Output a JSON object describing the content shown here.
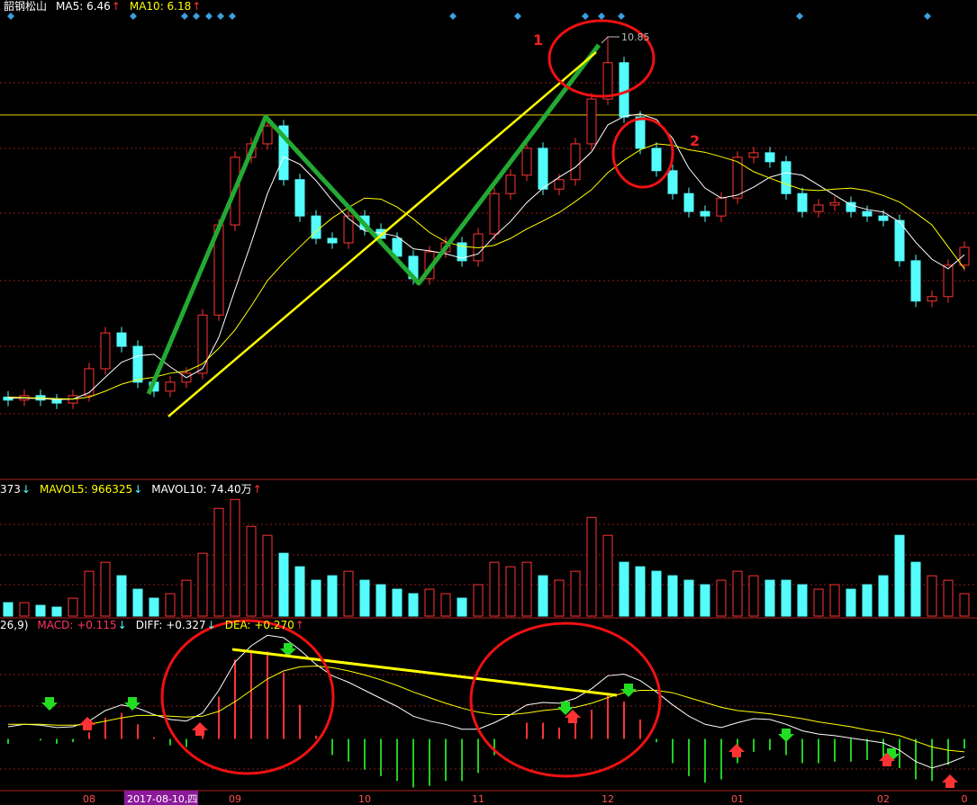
{
  "chart_data": [
    {
      "type": "candlestick",
      "title": "韶钢松山",
      "legend": [
        {
          "text": "MA5: 6.46",
          "arrow": "↑",
          "color": "#ffffff",
          "arrow_color": "#ff3333"
        },
        {
          "text": "MA10: 6.18",
          "arrow": "↑",
          "color": "#ffff00",
          "arrow_color": "#ff3333"
        }
      ],
      "categories": [
        null,
        null,
        null,
        null,
        null,
        "08",
        null,
        null,
        null,
        null,
        null,
        null,
        null,
        null,
        "09",
        null,
        null,
        null,
        null,
        null,
        null,
        null,
        "10",
        null,
        null,
        null,
        null,
        null,
        null,
        "11",
        null,
        null,
        null,
        null,
        null,
        null,
        null,
        "12",
        null,
        null,
        null,
        null,
        null,
        null,
        null,
        "01",
        null,
        null,
        null,
        null,
        null,
        null,
        null,
        null,
        "02",
        null,
        null,
        null,
        null,
        "0"
      ],
      "cursor_date": "2017-08-10,四",
      "open": [
        3.6,
        3.54,
        3.63,
        3.54,
        3.48,
        3.63,
        4.17,
        4.89,
        4.62,
        3.9,
        3.72,
        3.9,
        4.08,
        5.25,
        7.06,
        8.42,
        8.69,
        9.05,
        7.97,
        7.24,
        6.79,
        6.7,
        7.24,
        6.97,
        6.79,
        6.43,
        5.98,
        6.52,
        6.7,
        6.34,
        6.88,
        7.69,
        8.06,
        8.6,
        7.78,
        7.97,
        8.69,
        9.59,
        10.32,
        9.23,
        8.6,
        8.15,
        7.69,
        7.33,
        7.24,
        7.6,
        8.42,
        8.51,
        8.33,
        7.69,
        7.33,
        7.46,
        7.51,
        7.33,
        7.24,
        7.15,
        6.34,
        5.53,
        5.62,
        6.25
      ],
      "high": [
        3.72,
        3.75,
        3.75,
        3.66,
        3.75,
        4.29,
        5.01,
        5.01,
        4.74,
        4.02,
        4.02,
        4.2,
        5.37,
        7.18,
        8.54,
        8.81,
        9.17,
        9.17,
        8.09,
        7.36,
        6.91,
        7.36,
        7.36,
        7.09,
        6.91,
        6.55,
        6.64,
        6.82,
        6.82,
        7.0,
        7.81,
        8.18,
        8.72,
        8.72,
        8.09,
        8.81,
        9.71,
        10.85,
        10.44,
        9.35,
        8.72,
        8.27,
        7.81,
        7.45,
        7.72,
        8.54,
        8.63,
        8.63,
        8.45,
        7.81,
        7.58,
        7.63,
        7.63,
        7.45,
        7.36,
        7.27,
        6.46,
        5.74,
        6.37,
        6.73
      ],
      "low": [
        3.42,
        3.42,
        3.42,
        3.36,
        3.36,
        3.51,
        4.05,
        4.5,
        3.78,
        3.6,
        3.6,
        3.78,
        3.96,
        5.13,
        6.94,
        8.3,
        8.57,
        7.85,
        7.12,
        6.67,
        6.58,
        6.58,
        6.85,
        6.67,
        6.31,
        5.86,
        5.86,
        6.4,
        6.22,
        6.22,
        6.76,
        7.57,
        7.94,
        7.66,
        7.66,
        7.85,
        8.57,
        9.47,
        9.11,
        8.48,
        8.03,
        7.57,
        7.21,
        7.12,
        7.12,
        7.48,
        8.3,
        8.21,
        7.57,
        7.21,
        7.21,
        7.34,
        7.21,
        7.12,
        7.03,
        6.22,
        5.41,
        5.41,
        5.5,
        6.13
      ],
      "close": [
        3.54,
        3.63,
        3.54,
        3.48,
        3.63,
        4.17,
        4.89,
        4.62,
        3.9,
        3.72,
        3.9,
        4.08,
        5.25,
        7.06,
        8.42,
        8.69,
        9.05,
        7.97,
        7.24,
        6.79,
        6.7,
        7.24,
        6.97,
        6.79,
        6.43,
        5.98,
        6.52,
        6.7,
        6.34,
        6.88,
        7.69,
        8.06,
        8.6,
        7.78,
        7.97,
        8.69,
        9.59,
        10.32,
        9.23,
        8.6,
        8.15,
        7.69,
        7.33,
        7.24,
        7.6,
        8.42,
        8.51,
        8.33,
        7.69,
        7.33,
        7.46,
        7.51,
        7.33,
        7.24,
        7.15,
        6.34,
        5.53,
        5.62,
        6.25,
        6.61
      ],
      "series": [
        {
          "color": "#ffffff",
          "values": [
            3.58,
            3.58,
            3.57,
            3.55,
            3.56,
            3.69,
            4.0,
            4.3,
            4.43,
            4.46,
            4.21,
            3.99,
            4.17,
            4.8,
            5.76,
            6.7,
            7.69,
            8.43,
            8.28,
            7.95,
            7.55,
            7.19,
            6.94,
            6.9,
            6.83,
            6.58,
            6.54,
            6.48,
            6.39,
            6.48,
            6.83,
            7.13,
            7.51,
            7.8,
            8.02,
            8.22,
            8.53,
            9.07,
            9.24,
            9.29,
            9.18,
            8.8,
            8.2,
            7.8,
            7.6,
            7.66,
            7.82,
            8.02,
            8.11,
            8.06,
            7.86,
            7.66,
            7.46,
            7.37,
            7.32,
            7.12,
            6.71,
            6.37,
            6.18,
            6.46
          ]
        },
        {
          "color": "#ffff00",
          "values": [
            3.6,
            3.59,
            3.58,
            3.57,
            3.56,
            3.6,
            3.72,
            3.86,
            3.95,
            4.0,
            4.08,
            4.12,
            4.27,
            4.58,
            4.95,
            5.43,
            5.94,
            6.3,
            6.62,
            6.93,
            7.2,
            7.41,
            7.6,
            7.58,
            7.42,
            7.18,
            6.91,
            6.72,
            6.63,
            6.6,
            6.65,
            6.79,
            6.98,
            7.14,
            7.31,
            7.53,
            7.77,
            8.11,
            8.36,
            8.57,
            8.69,
            8.66,
            8.57,
            8.52,
            8.43,
            8.33,
            8.13,
            8.0,
            7.88,
            7.77,
            7.75,
            7.78,
            7.8,
            7.75,
            7.65,
            7.52,
            7.3,
            7.06,
            6.62,
            6.18
          ]
        }
      ],
      "ylim": [
        2,
        11.4
      ],
      "reference_line": 9.27,
      "up_color": "#ff3333",
      "down_color": "#54fcfc",
      "annotations": [
        "1",
        "2"
      ]
    },
    {
      "type": "bar",
      "legend": [
        {
          "text": "373",
          "arrow": "↓",
          "color": "#ffffff",
          "arrow_color": "#54fcfc"
        },
        {
          "text": "MAVOL5: 966325",
          "arrow": "↓",
          "color": "#ffff00",
          "arrow_color": "#54fcfc"
        },
        {
          "text": "MAVOL10: 74.40万",
          "arrow": "↑",
          "color": "#ffffff",
          "arrow_color": "#ff3333"
        }
      ],
      "values": [
        510000,
        510000,
        408000,
        340000,
        680000,
        1700000,
        2040000,
        1530000,
        1020000,
        680000,
        850000,
        1360000,
        2380000,
        4080000,
        4420000,
        3400000,
        3060000,
        2380000,
        1870000,
        1360000,
        1530000,
        1700000,
        1360000,
        1190000,
        1020000,
        850000,
        1020000,
        850000,
        680000,
        1190000,
        2040000,
        1870000,
        2040000,
        1530000,
        1360000,
        1700000,
        3740000,
        3060000,
        2040000,
        1870000,
        1700000,
        1530000,
        1360000,
        1190000,
        1360000,
        1700000,
        1530000,
        1360000,
        1360000,
        1190000,
        1020000,
        1190000,
        1020000,
        1190000,
        1530000,
        3060000,
        2040000,
        1530000,
        1360000,
        850000
      ],
      "ylim": [
        0,
        4600000
      ]
    },
    {
      "type": "macd",
      "legend": [
        {
          "text": "26,9)",
          "color": "#ffffff"
        },
        {
          "text": "MACD: +0.115",
          "arrow": "↓",
          "color": "#ff3366",
          "arrow_color": "#54fcfc"
        },
        {
          "text": "DIFF: +0.327",
          "arrow": "↓",
          "color": "#ffffff",
          "arrow_color": "#54fcfc"
        },
        {
          "text": "DEA: +0.270",
          "arrow": "↑",
          "color": "#ffff00",
          "arrow_color": "#ff3333"
        }
      ],
      "values": [
        -0.06,
        0,
        -0.02,
        -0.06,
        -0.04,
        0.08,
        0.26,
        0.32,
        0.18,
        0.02,
        -0.08,
        -0.1,
        0.08,
        0.52,
        0.98,
        1.1,
        1.08,
        0.82,
        0.42,
        0.04,
        -0.2,
        -0.28,
        -0.38,
        -0.46,
        -0.52,
        -0.6,
        -0.58,
        -0.52,
        -0.52,
        -0.42,
        -0.2,
        0,
        0.2,
        0.2,
        0.14,
        0.22,
        0.36,
        0.54,
        0.46,
        0.24,
        -0.04,
        -0.3,
        -0.46,
        -0.54,
        -0.5,
        -0.3,
        -0.16,
        -0.14,
        -0.2,
        -0.3,
        -0.3,
        -0.28,
        -0.28,
        -0.26,
        -0.26,
        -0.36,
        -0.5,
        -0.52,
        -0.32,
        -0.12
      ],
      "series": [
        {
          "color": "#ffffff",
          "values": [
            0.15,
            0.18,
            0.17,
            0.14,
            0.15,
            0.22,
            0.35,
            0.42,
            0.38,
            0.3,
            0.24,
            0.22,
            0.32,
            0.6,
            0.95,
            1.15,
            1.28,
            1.25,
            1.1,
            0.92,
            0.78,
            0.7,
            0.6,
            0.5,
            0.4,
            0.28,
            0.22,
            0.18,
            0.12,
            0.12,
            0.2,
            0.3,
            0.42,
            0.45,
            0.44,
            0.5,
            0.62,
            0.78,
            0.8,
            0.72,
            0.58,
            0.42,
            0.28,
            0.18,
            0.14,
            0.2,
            0.25,
            0.24,
            0.18,
            0.1,
            0.06,
            0.04,
            0.01,
            -0.02,
            -0.05,
            -0.14,
            -0.28,
            -0.36,
            -0.3,
            -0.22
          ]
        },
        {
          "color": "#ffff00",
          "values": [
            0.18,
            0.18,
            0.18,
            0.17,
            0.17,
            0.18,
            0.22,
            0.26,
            0.29,
            0.29,
            0.28,
            0.27,
            0.28,
            0.34,
            0.46,
            0.6,
            0.74,
            0.84,
            0.89,
            0.9,
            0.88,
            0.84,
            0.79,
            0.73,
            0.66,
            0.58,
            0.51,
            0.44,
            0.38,
            0.33,
            0.3,
            0.3,
            0.32,
            0.35,
            0.37,
            0.39,
            0.44,
            0.51,
            0.57,
            0.6,
            0.6,
            0.57,
            0.51,
            0.45,
            0.39,
            0.35,
            0.33,
            0.31,
            0.28,
            0.25,
            0.21,
            0.18,
            0.15,
            0.11,
            0.08,
            0.04,
            -0.03,
            -0.1,
            -0.14,
            -0.16
          ]
        }
      ],
      "ylim": [
        -0.65,
        1.35
      ],
      "up_color": "#ff3333",
      "down_color": "#22cc22"
    }
  ]
}
